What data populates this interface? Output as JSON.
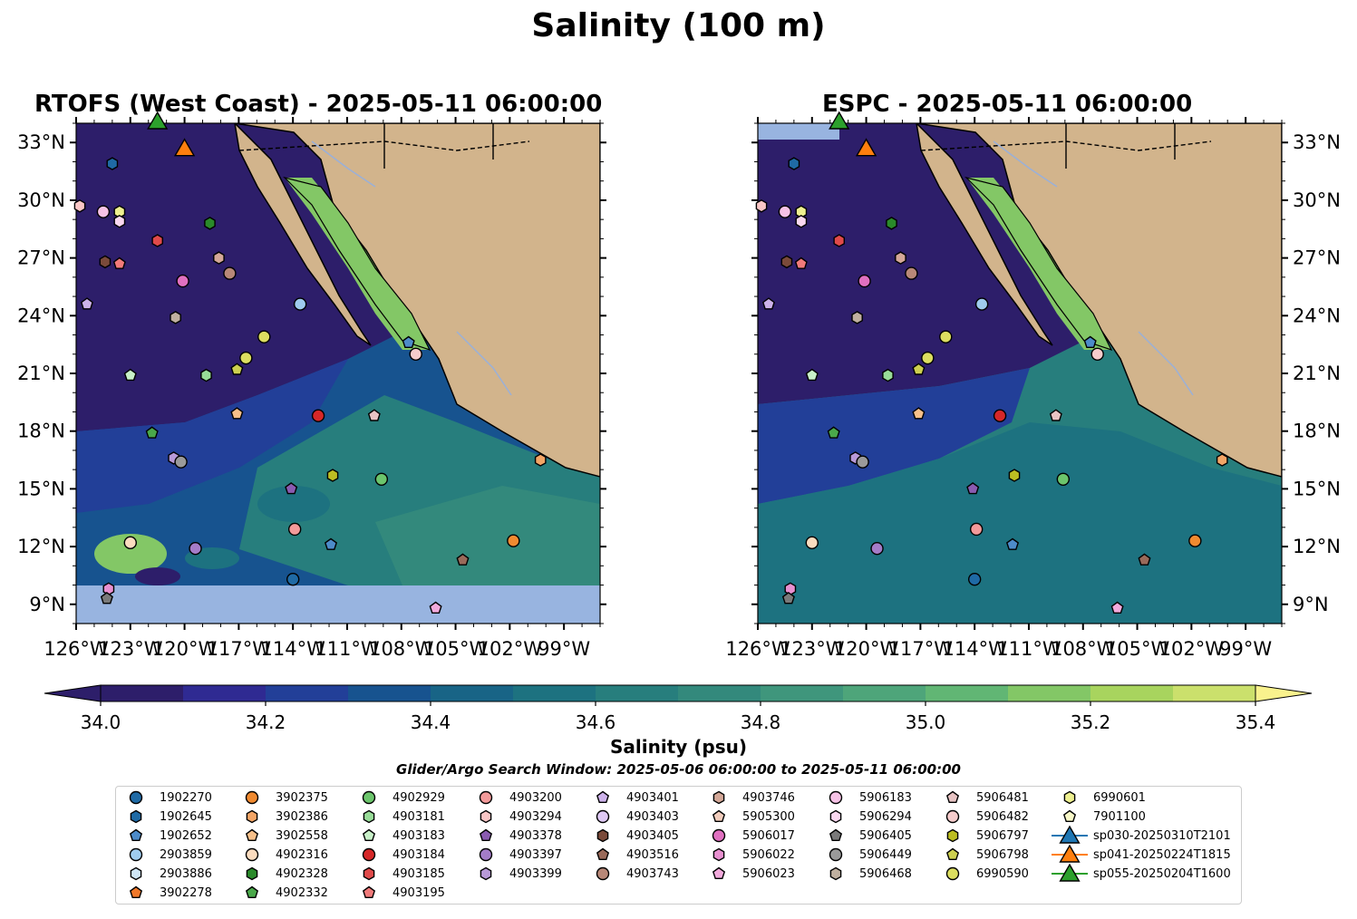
{
  "title": "Salinity (100 m)",
  "panels": [
    {
      "id": "rtofs",
      "title": "RTOFS (West Coast) - 2025-05-11 06:00:00",
      "model": "RTOFS"
    },
    {
      "id": "espc",
      "title": "ESPC - 2025-05-11 06:00:00",
      "model": "ESPC"
    }
  ],
  "map": {
    "lon_range": [
      -126,
      -97
    ],
    "lat_range": [
      8,
      34
    ],
    "lon_ticks": [
      "126°W",
      "123°W",
      "120°W",
      "117°W",
      "114°W",
      "111°W",
      "108°W",
      "105°W",
      "102°W",
      "99°W"
    ],
    "lat_ticks": [
      "9°N",
      "12°N",
      "15°N",
      "18°N",
      "21°N",
      "24°N",
      "27°N",
      "30°N",
      "33°N"
    ],
    "colors": {
      "land": "#d2b48c",
      "nodata": "#98b4e0",
      "coast": "#000000",
      "rivers": "#9ab0d8",
      "borders": "#000000"
    }
  },
  "colorbar": {
    "title": "Salinity (psu)",
    "ticks": [
      "34.0",
      "34.2",
      "34.4",
      "34.6",
      "34.8",
      "35.0",
      "35.2",
      "35.4"
    ],
    "extend": "both",
    "colormap_levels": [
      "#2d1e6a",
      "#2f2a92",
      "#223f98",
      "#17538f",
      "#186486",
      "#1d7280",
      "#277e7d",
      "#33897c",
      "#3f967c",
      "#4ea57a",
      "#61b674",
      "#83c766",
      "#a8d45e",
      "#cbe06c",
      "#f9f28d"
    ]
  },
  "search_window": "Glider/Argo Search Window: 2025-05-06 06:00:00 to 2025-05-11 06:00:00",
  "legend": {
    "items": [
      {
        "label": "1902270",
        "marker": "circle",
        "color": "#1f6aa5"
      },
      {
        "label": "1902645",
        "marker": "hexagon",
        "color": "#1f6aa5"
      },
      {
        "label": "1902652",
        "marker": "pentagon",
        "color": "#4d8bc9"
      },
      {
        "label": "2903859",
        "marker": "circle",
        "color": "#9fcbee"
      },
      {
        "label": "2903886",
        "marker": "hexagon",
        "color": "#cfe6f6"
      },
      {
        "label": "3902278",
        "marker": "pentagon",
        "color": "#f0782a"
      },
      {
        "label": "3902375",
        "marker": "circle",
        "color": "#f08a30"
      },
      {
        "label": "3902386",
        "marker": "hexagon",
        "color": "#f3a566"
      },
      {
        "label": "3902558",
        "marker": "pentagon",
        "color": "#f7c08a"
      },
      {
        "label": "4902316",
        "marker": "circle",
        "color": "#fbdcbf"
      },
      {
        "label": "4902328",
        "marker": "hexagon",
        "color": "#2a8a2a"
      },
      {
        "label": "4902332",
        "marker": "pentagon",
        "color": "#4aa84a"
      },
      {
        "label": "4902929",
        "marker": "circle",
        "color": "#6cc56c"
      },
      {
        "label": "4903181",
        "marker": "hexagon",
        "color": "#98dc98"
      },
      {
        "label": "4903183",
        "marker": "pentagon",
        "color": "#c8f0c8"
      },
      {
        "label": "4903184",
        "marker": "circle",
        "color": "#d62728"
      },
      {
        "label": "4903185",
        "marker": "hexagon",
        "color": "#e04a4a"
      },
      {
        "label": "4903195",
        "marker": "pentagon",
        "color": "#f07a7a"
      },
      {
        "label": "4903200",
        "marker": "circle",
        "color": "#f39a9a"
      },
      {
        "label": "4903294",
        "marker": "hexagon",
        "color": "#f9c6c6"
      },
      {
        "label": "4903378",
        "marker": "pentagon",
        "color": "#8a5bb0"
      },
      {
        "label": "4903397",
        "marker": "circle",
        "color": "#a47cc8"
      },
      {
        "label": "4903399",
        "marker": "hexagon",
        "color": "#b89ad8"
      },
      {
        "label": "4903401",
        "marker": "pentagon",
        "color": "#cdb2ea"
      },
      {
        "label": "4903403",
        "marker": "circle",
        "color": "#dfc9f4"
      },
      {
        "label": "4903405",
        "marker": "hexagon",
        "color": "#7a4a3a"
      },
      {
        "label": "4903516",
        "marker": "pentagon",
        "color": "#9a6a5a"
      },
      {
        "label": "4903743",
        "marker": "circle",
        "color": "#b88878"
      },
      {
        "label": "4903746",
        "marker": "hexagon",
        "color": "#d4a898"
      },
      {
        "label": "5905300",
        "marker": "pentagon",
        "color": "#f2cdbd"
      },
      {
        "label": "5906017",
        "marker": "circle",
        "color": "#e070c0"
      },
      {
        "label": "5906022",
        "marker": "hexagon",
        "color": "#e890d0"
      },
      {
        "label": "5906023",
        "marker": "pentagon",
        "color": "#f2aadc"
      },
      {
        "label": "5906183",
        "marker": "circle",
        "color": "#f6c2e6"
      },
      {
        "label": "5906294",
        "marker": "hexagon",
        "color": "#fad8f0"
      },
      {
        "label": "5906405",
        "marker": "pentagon",
        "color": "#7a7a7a"
      },
      {
        "label": "5906449",
        "marker": "circle",
        "color": "#9a9a9a"
      },
      {
        "label": "5906468",
        "marker": "hexagon",
        "color": "#c0b0a0"
      },
      {
        "label": "5906481",
        "marker": "pentagon",
        "color": "#e8c4c4"
      },
      {
        "label": "5906482",
        "marker": "circle",
        "color": "#f6cccc"
      },
      {
        "label": "5906797",
        "marker": "hexagon",
        "color": "#bcbd22"
      },
      {
        "label": "5906798",
        "marker": "pentagon",
        "color": "#cdd050"
      },
      {
        "label": "6990590",
        "marker": "circle",
        "color": "#dcde60"
      },
      {
        "label": "6990601",
        "marker": "hexagon",
        "color": "#eef090"
      },
      {
        "label": "7901100",
        "marker": "pentagon",
        "color": "#f8f8c8"
      },
      {
        "label": "sp030-20250310T2101",
        "marker": "triangle",
        "color": "#1f77b4"
      },
      {
        "label": "sp041-20250224T1815",
        "marker": "triangle",
        "color": "#ff7f0e"
      },
      {
        "label": "sp055-20250204T1600",
        "marker": "triangle",
        "color": "#2ca02c"
      }
    ]
  },
  "observations": [
    {
      "id": "1902645",
      "lat": 31.9,
      "lon": -124.0
    },
    {
      "id": "4903294",
      "lat": 29.7,
      "lon": -125.8
    },
    {
      "id": "5906183",
      "lat": 29.4,
      "lon": -124.5
    },
    {
      "id": "6990601",
      "lat": 29.4,
      "lon": -123.6
    },
    {
      "id": "5906294",
      "lat": 28.9,
      "lon": -123.6
    },
    {
      "id": "4902328",
      "lat": 28.8,
      "lon": -118.6
    },
    {
      "id": "4903185",
      "lat": 27.9,
      "lon": -121.5
    },
    {
      "id": "4903405",
      "lat": 26.8,
      "lon": -124.4
    },
    {
      "id": "4903195",
      "lat": 26.7,
      "lon": -123.6
    },
    {
      "id": "4903746",
      "lat": 27.0,
      "lon": -118.1
    },
    {
      "id": "4903743",
      "lat": 26.2,
      "lon": -117.5
    },
    {
      "id": "5906017",
      "lat": 25.8,
      "lon": -120.1
    },
    {
      "id": "4903401",
      "lat": 24.6,
      "lon": -125.4
    },
    {
      "id": "2903859",
      "lat": 24.6,
      "lon": -113.6
    },
    {
      "id": "5906468",
      "lat": 23.9,
      "lon": -120.5
    },
    {
      "id": "6990590",
      "lat": 22.9,
      "lon": -115.6
    },
    {
      "id": "1902652",
      "lat": 22.6,
      "lon": -107.6
    },
    {
      "id": "5906482",
      "lat": 22.0,
      "lon": -107.2
    },
    {
      "id": "6990590",
      "lat": 21.8,
      "lon": -116.6
    },
    {
      "id": "5906798",
      "lat": 21.2,
      "lon": -117.1
    },
    {
      "id": "4903183",
      "lat": 20.9,
      "lon": -123.0
    },
    {
      "id": "4903181",
      "lat": 20.9,
      "lon": -118.8
    },
    {
      "id": "3902558",
      "lat": 18.9,
      "lon": -117.1
    },
    {
      "id": "4903184",
      "lat": 18.8,
      "lon": -112.6
    },
    {
      "id": "5906481",
      "lat": 18.8,
      "lon": -109.5
    },
    {
      "id": "4902332",
      "lat": 17.9,
      "lon": -121.8
    },
    {
      "id": "4903399",
      "lat": 16.6,
      "lon": -120.6
    },
    {
      "id": "5906449",
      "lat": 16.4,
      "lon": -120.2
    },
    {
      "id": "3902386",
      "lat": 16.5,
      "lon": -100.3
    },
    {
      "id": "5906797",
      "lat": 15.7,
      "lon": -111.8
    },
    {
      "id": "4902929",
      "lat": 15.5,
      "lon": -109.1
    },
    {
      "id": "4903378",
      "lat": 15.0,
      "lon": -114.1
    },
    {
      "id": "4903200",
      "lat": 12.9,
      "lon": -113.9
    },
    {
      "id": "4902316",
      "lat": 12.2,
      "lon": -123.0
    },
    {
      "id": "4903397",
      "lat": 11.9,
      "lon": -119.4
    },
    {
      "id": "1902652",
      "lat": 12.1,
      "lon": -111.9
    },
    {
      "id": "3902375",
      "lat": 12.3,
      "lon": -101.8
    },
    {
      "id": "4903516",
      "lat": 11.3,
      "lon": -104.6
    },
    {
      "id": "1902270",
      "lat": 10.3,
      "lon": -114.0
    },
    {
      "id": "5906022",
      "lat": 9.8,
      "lon": -124.2
    },
    {
      "id": "5906405",
      "lat": 9.3,
      "lon": -124.3
    },
    {
      "id": "5906023",
      "lat": 8.8,
      "lon": -106.1
    },
    {
      "id": "sp041-20250224T1815",
      "lat": 32.6,
      "lon": -120.0
    },
    {
      "id": "sp055-20250204T1600",
      "lat": 34.0,
      "lon": -121.5
    }
  ]
}
